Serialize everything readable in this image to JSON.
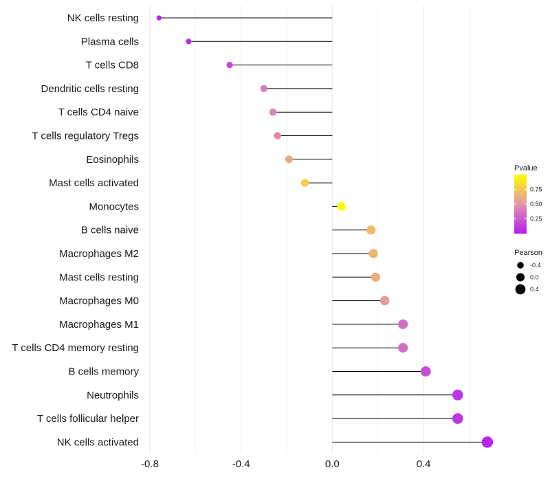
{
  "chart_data": {
    "type": "lollipop",
    "title": "",
    "xlabel": "",
    "ylabel": "",
    "xlim": [
      -0.83,
      0.76
    ],
    "xticks": [
      -0.8,
      -0.4,
      0.0,
      0.4
    ],
    "xtick_labels": [
      "-0.8",
      "-0.4",
      "0.0",
      "0.4"
    ],
    "grid": true,
    "categories": [
      "NK cells resting",
      "Plasma cells",
      "T cells CD8",
      "Dendritic cells resting",
      "T cells CD4 naive",
      "T cells regulatory  Tregs ",
      "Eosinophils",
      "Mast cells activated",
      "Monocytes",
      "B cells naive",
      "Macrophages M2",
      "Mast cells resting",
      "Macrophages M0",
      "Macrophages M1",
      "T cells CD4 memory resting",
      "B cells memory",
      "Neutrophils",
      "T cells follicular helper",
      "NK cells activated"
    ],
    "pearson": [
      -0.76,
      -0.63,
      -0.45,
      -0.3,
      -0.26,
      -0.24,
      -0.19,
      -0.12,
      0.04,
      0.17,
      0.18,
      0.19,
      0.23,
      0.31,
      0.31,
      0.41,
      0.55,
      0.55,
      0.68
    ],
    "pvalue": [
      0.02,
      0.05,
      0.18,
      0.4,
      0.42,
      0.45,
      0.6,
      0.78,
      0.99,
      0.68,
      0.66,
      0.62,
      0.53,
      0.34,
      0.34,
      0.2,
      0.1,
      0.1,
      0.03
    ],
    "legend": {
      "color_title": "Pvalue",
      "color_ticks": [
        0.75,
        0.5,
        0.25
      ],
      "color_tick_labels": [
        "0.75",
        "0.50",
        "0.25"
      ],
      "color_range": [
        0.0,
        1.0
      ],
      "color_low": "#b41ff2",
      "color_mid": "#e295a8",
      "color_high": "#ffff00",
      "size_title": "Pearson",
      "size_values": [
        -0.4,
        0.0,
        0.4
      ],
      "size_labels": [
        "-0.4",
        "0.0",
        "0.4"
      ],
      "placement": "right"
    }
  },
  "colors": {
    "background": "#ffffff",
    "grid": "#ebebeb",
    "segment": "#000000",
    "text": "#1a1a1a"
  }
}
